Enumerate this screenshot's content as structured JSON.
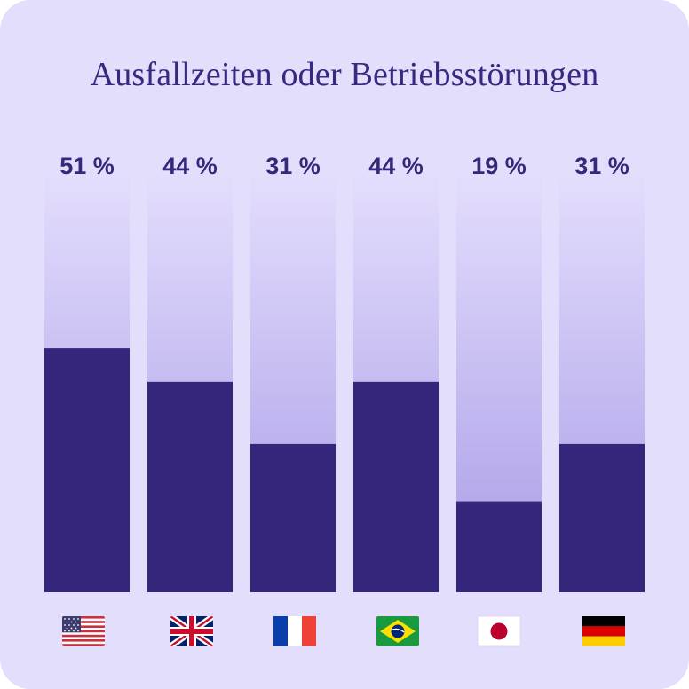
{
  "chart_data": {
    "type": "bar",
    "title": "Ausfallzeiten oder Betriebsstörungen",
    "categories": [
      "USA",
      "Vereinigtes Königreich",
      "Frankreich",
      "Brasilien",
      "Japan",
      "Deutschland"
    ],
    "values": [
      51,
      44,
      31,
      44,
      19,
      31
    ],
    "value_labels": [
      "51 %",
      "44 %",
      "31 %",
      "44 %",
      "19 %",
      "31 %"
    ],
    "ylim": [
      0,
      100
    ],
    "grid": false,
    "legend": "none",
    "category_icons": [
      "us-flag-icon",
      "uk-flag-icon",
      "france-flag-icon",
      "brazil-flag-icon",
      "japan-flag-icon",
      "germany-flag-icon"
    ]
  },
  "colors": {
    "background": "#e4defd",
    "bar_fill": "#36267b",
    "track_top": "#e4defd",
    "track_bottom": "#a99be6",
    "label": "#35287a",
    "title": "#3a2880"
  }
}
